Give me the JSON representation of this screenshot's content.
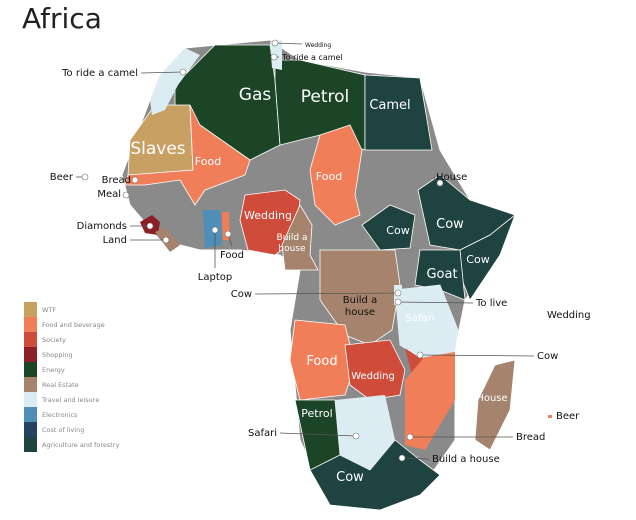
{
  "title": "Africa",
  "legend": [
    {
      "label": "WTF",
      "color": "#c9a063"
    },
    {
      "label": "Food and beverage",
      "color": "#f07f59"
    },
    {
      "label": "Society",
      "color": "#cf4c3b"
    },
    {
      "label": "Shopping",
      "color": "#8b1f26"
    },
    {
      "label": "Energy",
      "color": "#1c4527"
    },
    {
      "label": "Real Estate",
      "color": "#a5836c"
    },
    {
      "label": "Travel and leisure",
      "color": "#dcecf3"
    },
    {
      "label": "Electronics",
      "color": "#4e8eb7"
    },
    {
      "label": "Cost of living",
      "color": "#25415f"
    },
    {
      "label": "Agriculture and forestry",
      "color": "#1f4340"
    }
  ],
  "no_data_color": "#8a8a8a",
  "regions": [
    {
      "label": "Gas",
      "category": "Energy"
    },
    {
      "label": "Petrol",
      "category": "Energy"
    },
    {
      "label": "Camel",
      "category": "Agriculture and forestry"
    },
    {
      "label": "Slaves",
      "category": "WTF"
    },
    {
      "label": "Food",
      "category": "Food and beverage"
    },
    {
      "label": "Food",
      "category": "Food and beverage"
    },
    {
      "label": "Wedding",
      "category": "Society"
    },
    {
      "label": "Build a house",
      "category": "Real Estate"
    },
    {
      "label": "Cow",
      "category": "Agriculture and forestry"
    },
    {
      "label": "Cow",
      "category": "Agriculture and forestry"
    },
    {
      "label": "Cow",
      "category": "Agriculture and forestry"
    },
    {
      "label": "Goat",
      "category": "Agriculture and forestry"
    },
    {
      "label": "Build a house",
      "category": "Real Estate"
    },
    {
      "label": "Safari",
      "category": "Travel and leisure"
    },
    {
      "label": "Food",
      "category": "Food and beverage"
    },
    {
      "label": "Wedding",
      "category": "Society"
    },
    {
      "label": "Petrol",
      "category": "Energy"
    },
    {
      "label": "Cow",
      "category": "Agriculture and forestry"
    },
    {
      "label": "House",
      "category": "Real Estate"
    }
  ],
  "callouts": [
    {
      "label": "To ride a camel"
    },
    {
      "label": "Wedding"
    },
    {
      "label": "To ride a camel"
    },
    {
      "label": "House"
    },
    {
      "label": "Beer"
    },
    {
      "label": "Bread"
    },
    {
      "label": "Meal"
    },
    {
      "label": "Diamonds"
    },
    {
      "label": "Land"
    },
    {
      "label": "Food"
    },
    {
      "label": "Laptop"
    },
    {
      "label": "Cow"
    },
    {
      "label": "To live"
    },
    {
      "label": "Wedding"
    },
    {
      "label": "Cow"
    },
    {
      "label": "Beer"
    },
    {
      "label": "Safari"
    },
    {
      "label": "Bread"
    },
    {
      "label": "Build a house"
    }
  ]
}
